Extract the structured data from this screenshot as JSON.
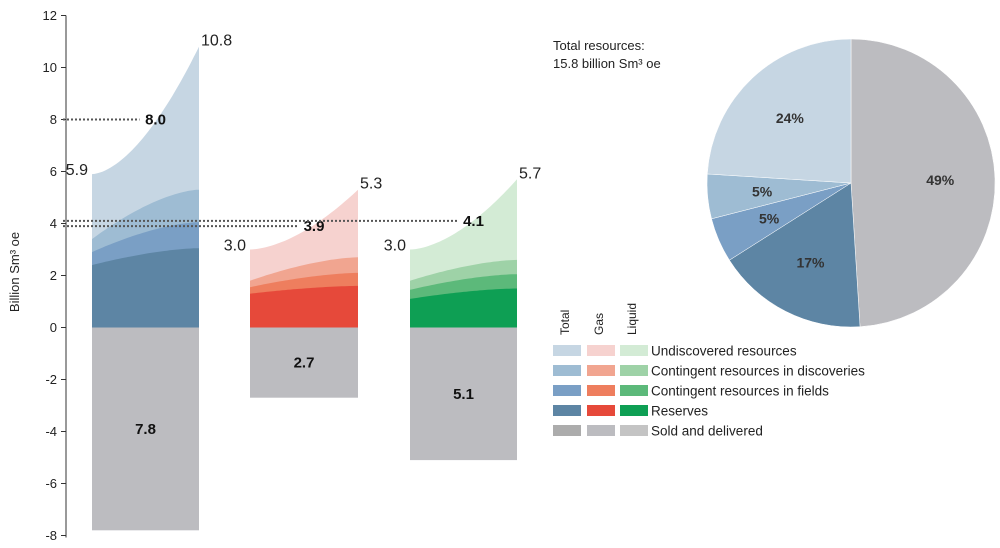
{
  "chart_data": [
    {
      "type": "area",
      "ylabel": "Billion Sm³ oe",
      "ylim": [
        -8,
        12
      ],
      "yticks": [
        "12",
        "10",
        "8",
        "6",
        "4",
        "2",
        "0",
        "-2",
        "-4",
        "-6",
        "-8"
      ],
      "grid": false,
      "groups": [
        {
          "name": "Total",
          "start_total_label": "5.9",
          "end_total_label": "10.8",
          "mid_label": "8.0",
          "mid_value": 8.0,
          "sold_label": "7.8",
          "sold_value": -7.8,
          "layers": [
            {
              "series": "Reserves",
              "start": 2.4,
              "end": 3.05,
              "color": "#5d85a4"
            },
            {
              "series": "Contingent resources in fields",
              "start": 2.9,
              "end": 4.05,
              "color": "#7a9fc5"
            },
            {
              "series": "Contingent resources in discoveries",
              "start": 3.4,
              "end": 5.3,
              "color": "#9ebcd3"
            },
            {
              "series": "Undiscovered resources",
              "start": 5.9,
              "end": 10.8,
              "color": "#c6d6e3"
            }
          ]
        },
        {
          "name": "Gas",
          "start_total_label": "3.0",
          "end_total_label": "5.3",
          "mid_label": "3.9",
          "mid_value": 3.9,
          "sold_label": "2.7",
          "sold_value": -2.7,
          "layers": [
            {
              "series": "Reserves",
              "start": 1.3,
              "end": 1.6,
              "color": "#e6493a"
            },
            {
              "series": "Contingent resources in fields",
              "start": 1.55,
              "end": 2.1,
              "color": "#ee7e5e"
            },
            {
              "series": "Contingent resources in discoveries",
              "start": 1.8,
              "end": 2.7,
              "color": "#f1a590"
            },
            {
              "series": "Undiscovered resources",
              "start": 3.0,
              "end": 5.3,
              "color": "#f6d2cf"
            }
          ]
        },
        {
          "name": "Liquid",
          "start_total_label": "3.0",
          "end_total_label": "5.7",
          "mid_label": "4.1",
          "mid_value": 4.1,
          "sold_label": "5.1",
          "sold_value": -5.1,
          "layers": [
            {
              "series": "Reserves",
              "start": 1.1,
              "end": 1.5,
              "color": "#0e9f54"
            },
            {
              "series": "Contingent resources in fields",
              "start": 1.45,
              "end": 2.05,
              "color": "#5cb97a"
            },
            {
              "series": "Contingent resources in discoveries",
              "start": 1.8,
              "end": 2.6,
              "color": "#9ed2a7"
            },
            {
              "series": "Undiscovered resources",
              "start": 3.0,
              "end": 5.7,
              "color": "#d3ebd5"
            }
          ]
        }
      ],
      "sold_color": "#bcbcc0"
    },
    {
      "type": "pie",
      "note_line1": "Total resources:",
      "note_line2": "15.8 billion Sm³ oe",
      "slices": [
        {
          "series": "Sold and delivered",
          "value": 49,
          "label": "49%",
          "color": "#bcbcc0"
        },
        {
          "series": "Reserves",
          "value": 17,
          "label": "17%",
          "color": "#5d85a4"
        },
        {
          "series": "Contingent resources in fields",
          "value": 5,
          "label": "5%",
          "color": "#7a9fc5"
        },
        {
          "series": "Contingent resources in discoveries",
          "value": 5,
          "label": "5%",
          "color": "#9ebcd3"
        },
        {
          "series": "Undiscovered resources",
          "value": 24,
          "label": "24%",
          "color": "#c6d6e3"
        }
      ]
    }
  ],
  "legend": {
    "column_headers": [
      "Total",
      "Gas",
      "Liquid"
    ],
    "rows": [
      {
        "label": "Undiscovered resources",
        "colors": [
          "#c6d6e3",
          "#f6d2cf",
          "#d3ebd5"
        ]
      },
      {
        "label": "Contingent resources in discoveries",
        "colors": [
          "#9ebcd3",
          "#f1a590",
          "#9ed2a7"
        ]
      },
      {
        "label": "Contingent resources in fields",
        "colors": [
          "#7a9fc5",
          "#ee7e5e",
          "#5cb97a"
        ]
      },
      {
        "label": "Reserves",
        "colors": [
          "#5d85a4",
          "#e6493a",
          "#0e9f54"
        ]
      },
      {
        "label": "Sold and delivered",
        "colors": [
          "#acacac",
          "#bcbcc0",
          "#c4c4c4"
        ]
      }
    ]
  }
}
